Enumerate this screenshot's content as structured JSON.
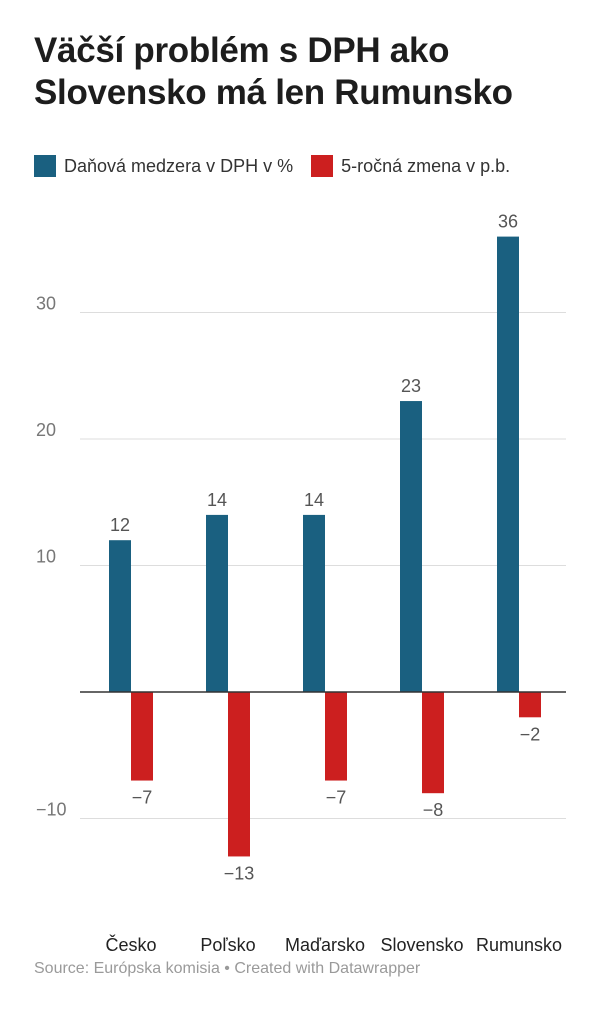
{
  "chart_data": {
    "type": "bar",
    "title": "Väčší problém s DPH ako Slovensko má len Rumunsko",
    "categories": [
      "Česko",
      "Poľsko",
      "Maďarsko",
      "Slovensko",
      "Rumunsko"
    ],
    "series": [
      {
        "name": "Daňová medzera v DPH v %",
        "color": "#1a6080",
        "values": [
          12,
          14,
          14,
          23,
          36
        ]
      },
      {
        "name": "5-ročná zmena v p.b.",
        "color": "#cc1f1f",
        "values": [
          -7,
          -13,
          -7,
          -8,
          -2
        ]
      }
    ],
    "value_labels": [
      [
        "12",
        "14",
        "14",
        "23",
        "36"
      ],
      [
        "−7",
        "−13",
        "−7",
        "−8",
        "−2"
      ]
    ],
    "y_ticks": [
      30,
      20,
      10,
      -10
    ],
    "y_tick_labels": [
      "30",
      "20",
      "10",
      "−10"
    ],
    "ylim": [
      -15,
      36
    ],
    "grid": true,
    "legend_position": "top-left",
    "xlabel": "",
    "ylabel": ""
  },
  "source": "Source: Európska komisia • Created with Datawrapper"
}
